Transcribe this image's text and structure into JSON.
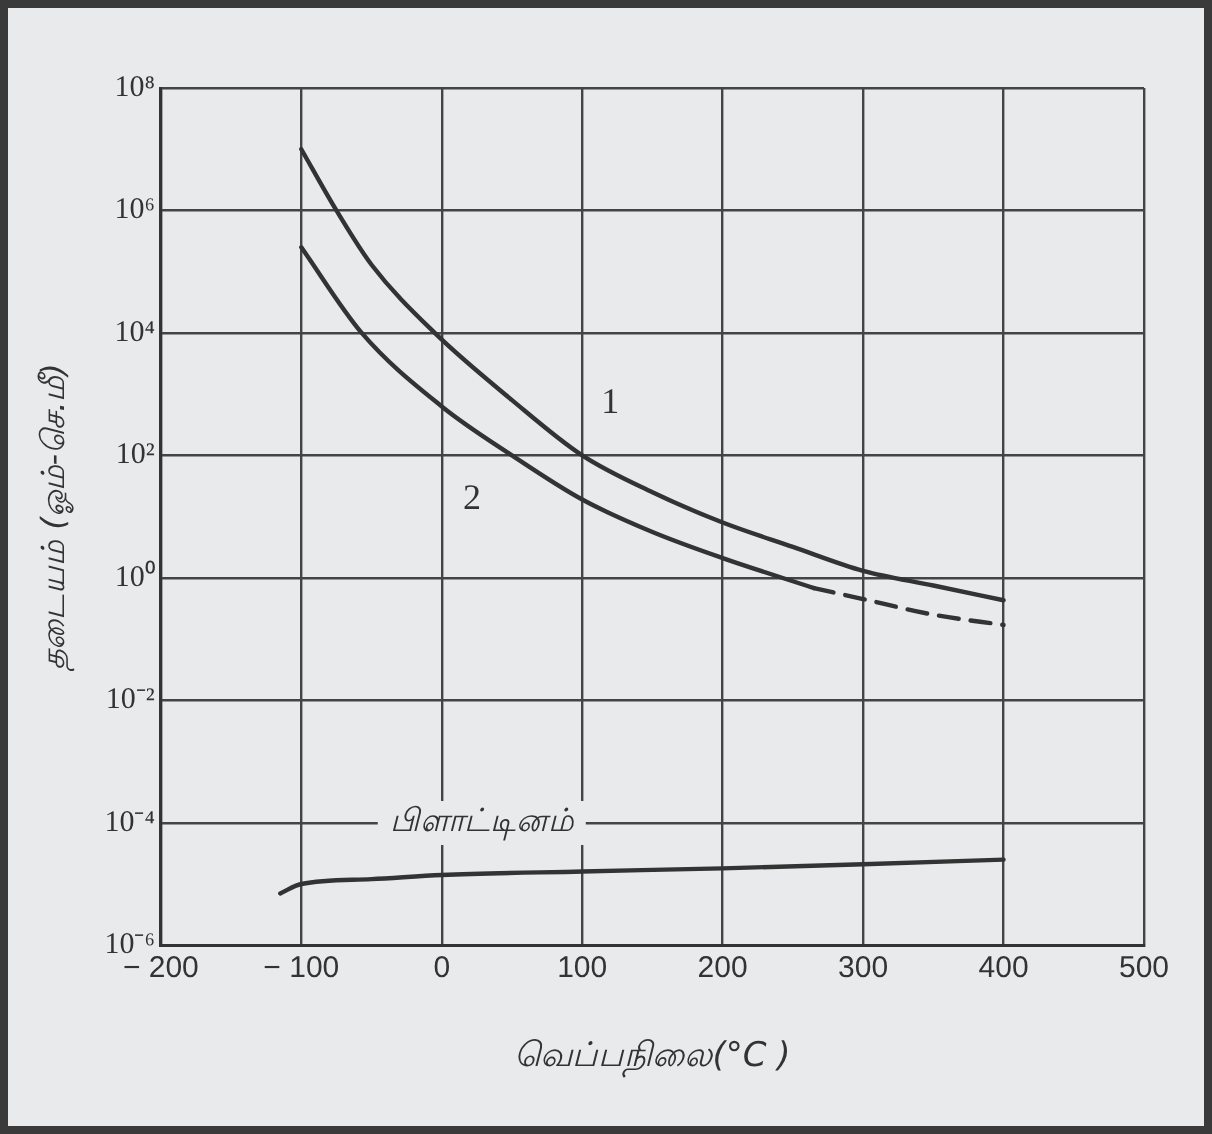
{
  "chart_data": {
    "type": "line",
    "xlabel": "வெப்பநிலை(°C )",
    "ylabel": "தடையம் (ஓம்-செ.மீ)",
    "xlim": [
      -200,
      500
    ],
    "xticks": [
      -200,
      -100,
      0,
      100,
      200,
      300,
      400,
      500
    ],
    "ylim": [
      1e-06,
      100000000.0
    ],
    "yticks": [
      {
        "value": 1e-06,
        "label": "10⁻⁶"
      },
      {
        "value": 0.0001,
        "label": "10⁻⁴"
      },
      {
        "value": 0.01,
        "label": "10⁻²"
      },
      {
        "value": 1,
        "label": "10⁰"
      },
      {
        "value": 100,
        "label": "10²"
      },
      {
        "value": 10000,
        "label": "10⁴"
      },
      {
        "value": 1000000,
        "label": "10⁶"
      },
      {
        "value": 100000000,
        "label": "10⁸"
      }
    ],
    "log": "y",
    "grid": true,
    "legend": false,
    "marker": "none",
    "series": [
      {
        "name": "1",
        "color": "#333333",
        "line_style": "solid",
        "x": [
          -100,
          -75,
          -50,
          -5,
          50,
          100,
          150,
          200,
          250,
          300,
          350,
          400
        ],
        "values": [
          10000000,
          1000000,
          130000,
          10000,
          800,
          100,
          25,
          8,
          3.2,
          1.3,
          0.75,
          0.43
        ]
      },
      {
        "name": "2",
        "color": "#333333",
        "line_style": "solid",
        "x": [
          -100,
          -57,
          0,
          50,
          100,
          150,
          200,
          265
        ],
        "values": [
          250000,
          10000,
          630,
          100,
          19,
          5.6,
          2.1,
          0.68
        ]
      },
      {
        "color": "#333333",
        "line_style": "dashed",
        "x": [
          265,
          300,
          350,
          400
        ],
        "values": [
          0.68,
          0.45,
          0.25,
          0.17
        ]
      },
      {
        "name": "பிளாட்டினம்",
        "color": "#333333",
        "line_style": "solid",
        "x": [
          -115,
          -100,
          -50,
          0,
          100,
          200,
          300,
          400
        ],
        "values": [
          7e-06,
          1e-05,
          1.2e-05,
          1.4e-05,
          1.6e-05,
          1.8e-05,
          2.1e-05,
          2.5e-05
        ]
      }
    ]
  }
}
